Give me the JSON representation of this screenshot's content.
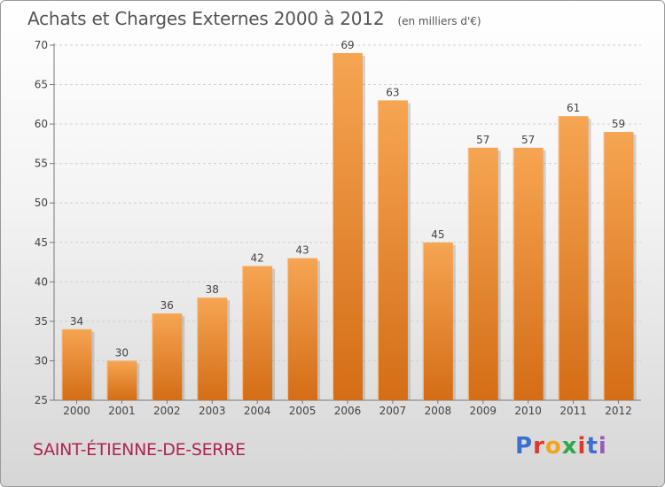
{
  "header": {
    "title": "Achats et Charges Externes 2000 à 2012",
    "unit": "(en milliers d'€)"
  },
  "footer": {
    "place": "SAINT-ÉTIENNE-DE-SERRE",
    "brand": "Proxiti"
  },
  "brand_colors": [
    "#3b6fd0",
    "#e0392b",
    "#f2a31b",
    "#2da84a",
    "#e0392b",
    "#3b6fd0",
    "#9b59b6"
  ],
  "chart_data": {
    "type": "bar",
    "title": "Achats et Charges Externes 2000 à 2012",
    "xlabel": "",
    "ylabel": "",
    "categories": [
      "2000",
      "2001",
      "2002",
      "2003",
      "2004",
      "2005",
      "2006",
      "2007",
      "2008",
      "2009",
      "2010",
      "2011",
      "2012"
    ],
    "values": [
      34,
      30,
      36,
      38,
      42,
      43,
      69,
      63,
      45,
      57,
      57,
      61,
      59
    ],
    "ylim": [
      25,
      70
    ],
    "yticks": [
      25,
      30,
      35,
      40,
      45,
      50,
      55,
      60,
      65,
      70
    ],
    "grid": true,
    "bar_color": "#f0973f"
  }
}
